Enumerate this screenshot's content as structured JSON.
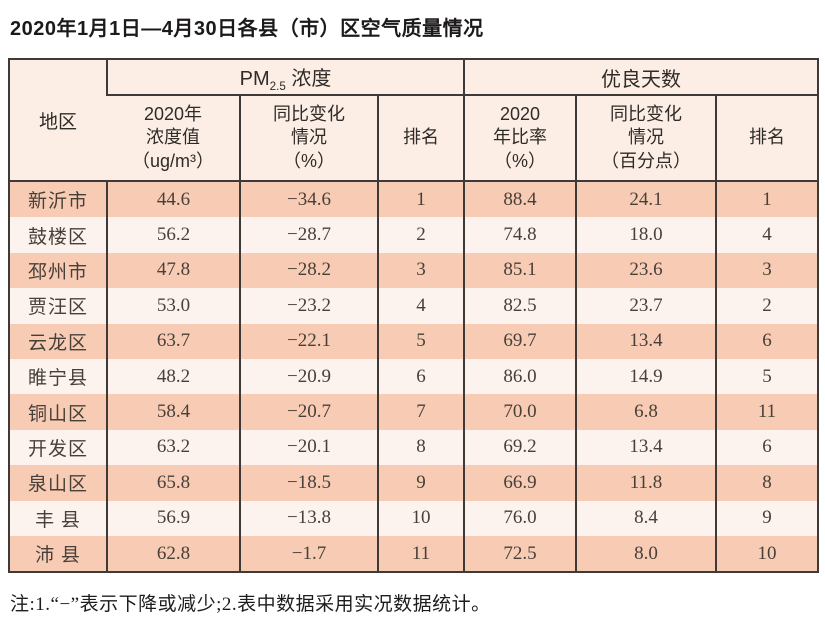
{
  "title": "2020年1月1日—4月30日各县（市）区空气质量情况",
  "note": "注:1.“−”表示下降或减少;2.表中数据采用实况数据统计。",
  "colors": {
    "row_odd": "#f8cbb4",
    "row_even": "#fdf3ee",
    "header_bg": "#fceee4",
    "border": "#3e3a38"
  },
  "table": {
    "header": {
      "region": "地区",
      "pm_prefix": "PM",
      "pm_sub": "2.5",
      "pm_suffix": " 浓度",
      "good_days": "优良天数",
      "pm_value": "2020年\n浓度值\n（ug/m³）",
      "pm_change": "同比变化\n情况\n（%）",
      "pm_rank": "排名",
      "gd_rate": "2020\n年比率\n（%）",
      "gd_change": "同比变化\n情况\n（百分点）",
      "gd_rank": "排名"
    },
    "rows": [
      {
        "region": "新沂市",
        "pm_value": "44.6",
        "pm_change": "−34.6",
        "pm_rank": "1",
        "gd_rate": "88.4",
        "gd_change": "24.1",
        "gd_rank": "1"
      },
      {
        "region": "鼓楼区",
        "pm_value": "56.2",
        "pm_change": "−28.7",
        "pm_rank": "2",
        "gd_rate": "74.8",
        "gd_change": "18.0",
        "gd_rank": "4"
      },
      {
        "region": "邳州市",
        "pm_value": "47.8",
        "pm_change": "−28.2",
        "pm_rank": "3",
        "gd_rate": "85.1",
        "gd_change": "23.6",
        "gd_rank": "3"
      },
      {
        "region": "贾汪区",
        "pm_value": "53.0",
        "pm_change": "−23.2",
        "pm_rank": "4",
        "gd_rate": "82.5",
        "gd_change": "23.7",
        "gd_rank": "2"
      },
      {
        "region": "云龙区",
        "pm_value": "63.7",
        "pm_change": "−22.1",
        "pm_rank": "5",
        "gd_rate": "69.7",
        "gd_change": "13.4",
        "gd_rank": "6"
      },
      {
        "region": "睢宁县",
        "pm_value": "48.2",
        "pm_change": "−20.9",
        "pm_rank": "6",
        "gd_rate": "86.0",
        "gd_change": "14.9",
        "gd_rank": "5"
      },
      {
        "region": "铜山区",
        "pm_value": "58.4",
        "pm_change": "−20.7",
        "pm_rank": "7",
        "gd_rate": "70.0",
        "gd_change": "6.8",
        "gd_rank": "11"
      },
      {
        "region": "开发区",
        "pm_value": "63.2",
        "pm_change": "−20.1",
        "pm_rank": "8",
        "gd_rate": "69.2",
        "gd_change": "13.4",
        "gd_rank": "6"
      },
      {
        "region": "泉山区",
        "pm_value": "65.8",
        "pm_change": "−18.5",
        "pm_rank": "9",
        "gd_rate": "66.9",
        "gd_change": "11.8",
        "gd_rank": "8"
      },
      {
        "region": "丰 县",
        "pm_value": "56.9",
        "pm_change": "−13.8",
        "pm_rank": "10",
        "gd_rate": "76.0",
        "gd_change": "8.4",
        "gd_rank": "9"
      },
      {
        "region": "沛 县",
        "pm_value": "62.8",
        "pm_change": "−1.7",
        "pm_rank": "11",
        "gd_rate": "72.5",
        "gd_change": "8.0",
        "gd_rank": "10"
      }
    ]
  }
}
